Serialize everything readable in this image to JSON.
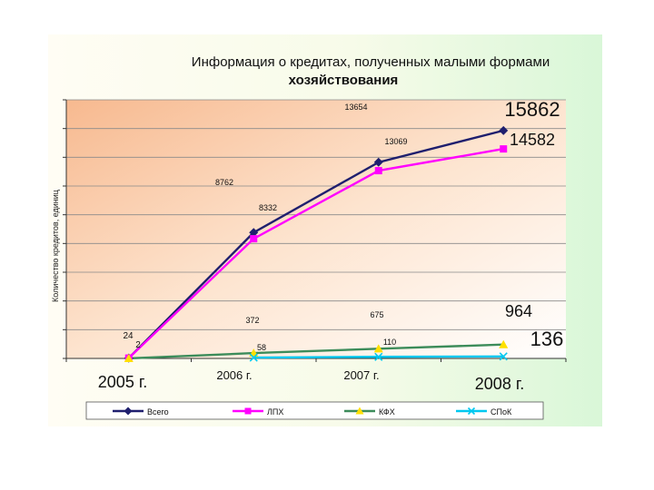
{
  "title_line1": "Информация о кредитах, полученных малыми формами",
  "title_line2": "хозяйствования",
  "chart_data": {
    "type": "line",
    "title": "Информация о кредитах, полученных малыми формами хозяйствования",
    "ylabel": "Количество кредитов, единиц",
    "xlabel": "",
    "categories": [
      "2005 г.",
      "2006 г.",
      "2007 г.",
      "2008 г."
    ],
    "ylim": [
      0,
      18000
    ],
    "grid": true,
    "legend_position": "bottom",
    "series": [
      {
        "name": "Всего",
        "color": "#1f1f6e",
        "marker": "diamond",
        "values": [
          24,
          8762,
          13654,
          15862
        ],
        "labels": [
          "24",
          "8762",
          "13654",
          "15862"
        ]
      },
      {
        "name": "ЛПХ",
        "color": "#ff00ff",
        "marker": "square",
        "values": [
          24,
          8332,
          13069,
          14582
        ],
        "labels": [
          "",
          "8332",
          "13069",
          "14582"
        ]
      },
      {
        "name": "КФХ",
        "color": "#3c8c5a",
        "marker": "triangle",
        "values": [
          2,
          372,
          675,
          964
        ],
        "labels": [
          "2",
          "372",
          "675",
          "964"
        ]
      },
      {
        "name": "СПоК",
        "color": "#00c8f0",
        "marker": "x",
        "values": [
          null,
          58,
          110,
          136
        ],
        "labels": [
          "",
          "58",
          "110",
          "136"
        ]
      }
    ]
  }
}
